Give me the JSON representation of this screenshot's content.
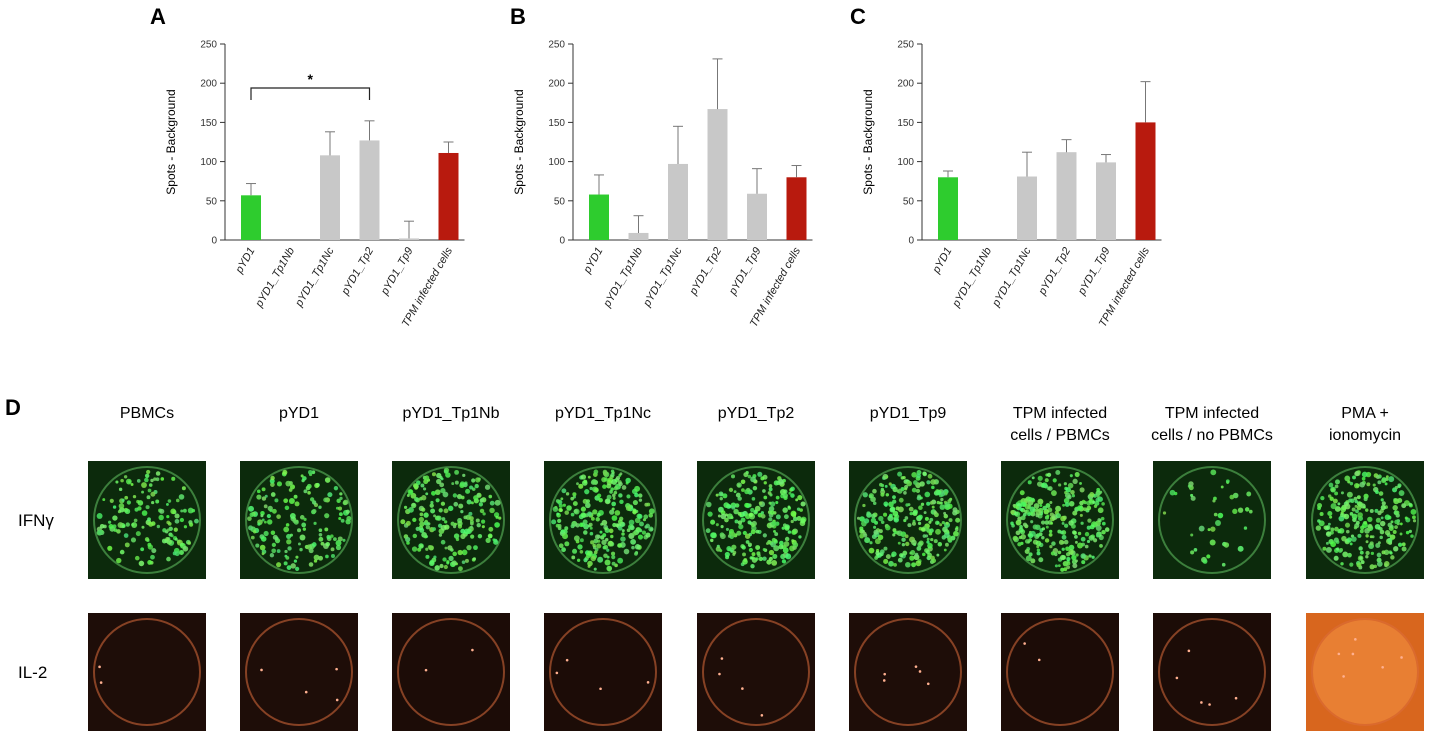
{
  "chart_data": [
    {
      "type": "bar",
      "panel": "A",
      "ylabel": "Spots - Background",
      "ylim": [
        0,
        250
      ],
      "yticks": [
        0,
        50,
        100,
        150,
        200,
        250
      ],
      "categories": [
        "pYD1",
        "pYD1_Tp1Nb",
        "pYD1_Tp1Nc",
        "pYD1_Tp2",
        "pYD1_Tp9",
        "TPM infected cells"
      ],
      "values": [
        57,
        0,
        108,
        127,
        2,
        111
      ],
      "error": [
        15,
        0,
        30,
        25,
        22,
        14
      ],
      "colors": [
        "#2ecc2e",
        "#c8c8c8",
        "#c8c8c8",
        "#c8c8c8",
        "#c8c8c8",
        "#b81a0e"
      ],
      "significance": {
        "from": 0,
        "to": 3,
        "label": "*"
      }
    },
    {
      "type": "bar",
      "panel": "B",
      "ylabel": "Spots - Background",
      "ylim": [
        0,
        250
      ],
      "yticks": [
        0,
        50,
        100,
        150,
        200,
        250
      ],
      "categories": [
        "pYD1",
        "pYD1_Tp1Nb",
        "pYD1_Tp1Nc",
        "pYD1_Tp2",
        "pYD1_Tp9",
        "TPM infected cells"
      ],
      "values": [
        58,
        9,
        97,
        167,
        59,
        80
      ],
      "error": [
        25,
        22,
        48,
        64,
        32,
        15
      ],
      "colors": [
        "#2ecc2e",
        "#c8c8c8",
        "#c8c8c8",
        "#c8c8c8",
        "#c8c8c8",
        "#b81a0e"
      ]
    },
    {
      "type": "bar",
      "panel": "C",
      "ylabel": "Spots - Background",
      "ylim": [
        0,
        250
      ],
      "yticks": [
        0,
        50,
        100,
        150,
        200,
        250
      ],
      "categories": [
        "pYD1",
        "pYD1_Tp1Nb",
        "pYD1_Tp1Nc",
        "pYD1_Tp2",
        "pYD1_Tp9",
        "TPM infected cells"
      ],
      "values": [
        80,
        0,
        81,
        112,
        99,
        150
      ],
      "error": [
        8,
        0,
        31,
        16,
        10,
        52
      ],
      "colors": [
        "#2ecc2e",
        "#c8c8c8",
        "#c8c8c8",
        "#c8c8c8",
        "#c8c8c8",
        "#b81a0e"
      ]
    }
  ],
  "panel_d": {
    "letter": "D",
    "columns": [
      [
        "PBMCs",
        ""
      ],
      [
        "pYD1",
        ""
      ],
      [
        "pYD1_Tp1Nb",
        ""
      ],
      [
        "pYD1_Tp1Nc",
        ""
      ],
      [
        "pYD1_Tp2",
        ""
      ],
      [
        "pYD1_Tp9",
        ""
      ],
      [
        "TPM infected",
        "cells / PBMCs"
      ],
      [
        "TPM infected",
        "cells / no PBMCs"
      ],
      [
        "PMA +",
        "ionomycin"
      ]
    ],
    "rows": [
      "IFNγ",
      "IL-2"
    ],
    "ifn_spot_density": [
      0.55,
      0.6,
      0.75,
      0.95,
      0.9,
      0.95,
      1.0,
      0.15,
      0.9
    ],
    "il2_spot_density": [
      0.02,
      0.03,
      0.02,
      0.03,
      0.03,
      0.04,
      0.01,
      0.04,
      0.05
    ],
    "il2_background": [
      "#1e0d08",
      "#1e0d08",
      "#1c0c07",
      "#1c0c07",
      "#1e0d08",
      "#1e0d08",
      "#1c0c07",
      "#1c0c07",
      "#d8661e"
    ]
  }
}
